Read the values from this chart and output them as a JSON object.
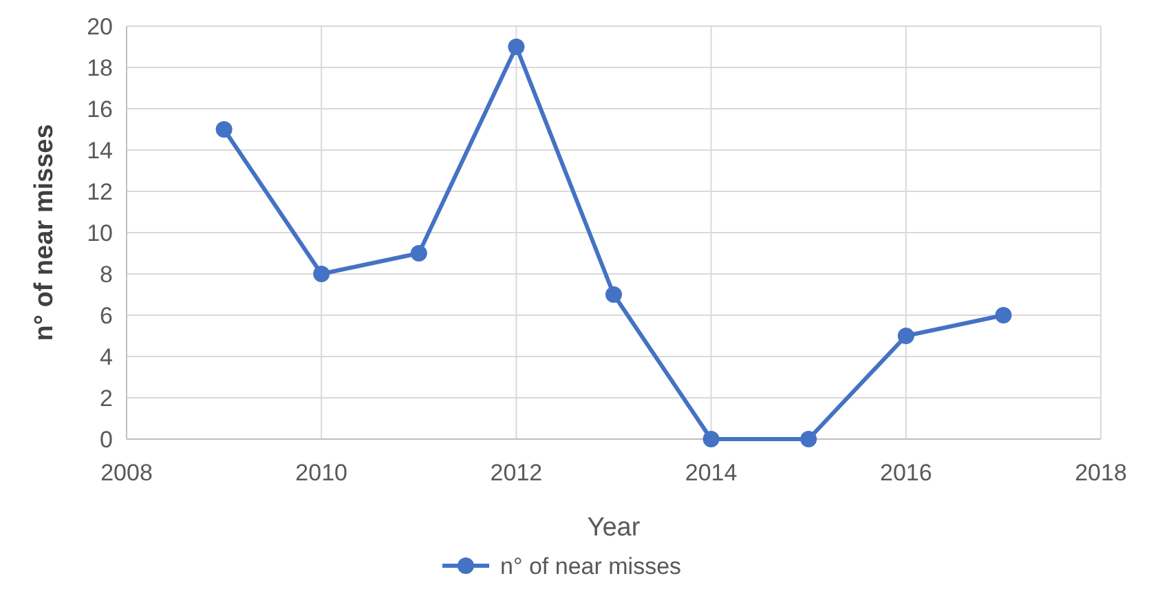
{
  "chart_data": {
    "type": "line",
    "xlabel": "Year",
    "ylabel": "n° of near misses",
    "x": [
      2009,
      2010,
      2011,
      2012,
      2013,
      2014,
      2015,
      2016,
      2017
    ],
    "series": [
      {
        "name": "n° of near misses",
        "color": "#4472c4",
        "values": [
          15,
          8,
          9,
          19,
          7,
          0,
          0,
          5,
          6
        ]
      }
    ],
    "xlim": [
      2008,
      2018
    ],
    "xticks": [
      2008,
      2010,
      2012,
      2014,
      2016,
      2018
    ],
    "ylim": [
      0,
      20
    ],
    "yticks": [
      0,
      2,
      4,
      6,
      8,
      10,
      12,
      14,
      16,
      18,
      20
    ],
    "grid": true,
    "legend": "bottom",
    "marker": "circle",
    "line_style": "solid"
  }
}
